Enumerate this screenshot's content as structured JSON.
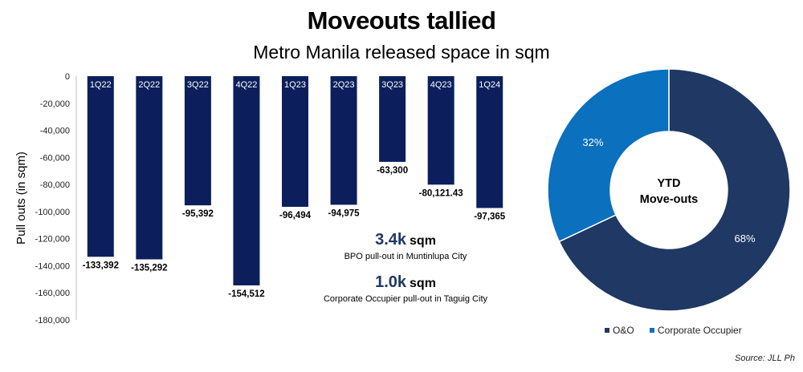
{
  "header": {
    "title": "Moveouts tallied",
    "subtitle": "Metro Manila released space in sqm"
  },
  "source": "Source: JLL Ph",
  "colors": {
    "bar": "#0c1f5c",
    "o_and_o": "#1f3864",
    "corporate_occupier": "#0b70bd"
  },
  "chart_data": [
    {
      "type": "bar",
      "ylabel": "Pull outs (in sqm)",
      "ylim": [
        -180000,
        0
      ],
      "yticks": [
        "0",
        "-20,000",
        "-40,000",
        "-60,000",
        "-80,000",
        "-100,000",
        "-120,000",
        "-140,000",
        "-160,000",
        "-180,000"
      ],
      "categories": [
        "1Q22",
        "2Q22",
        "3Q22",
        "4Q22",
        "1Q23",
        "2Q23",
        "3Q23",
        "4Q23",
        "1Q24"
      ],
      "values": [
        -133392,
        -135292,
        -95392,
        -154512,
        -96494,
        -94975,
        -63300,
        -80121.43,
        -97365
      ],
      "data_labels": [
        "-133,392",
        "-135,292",
        "-95,392",
        "-154,512",
        "-96,494",
        "-94,975",
        "-63,300",
        "-80,121.43",
        "-97,365"
      ],
      "annotations": [
        {
          "value": "3.4k",
          "unit": "sqm",
          "text": "BPO pull-out in Muntinlupa City"
        },
        {
          "value": "1.0k",
          "unit": "sqm",
          "text": "Corporate Occupier pull-out in Taguig City"
        }
      ]
    },
    {
      "type": "pie",
      "style": "donut",
      "center_label": [
        "YTD",
        "Move-outs"
      ],
      "legend_position": "bottom",
      "categories": [
        "O&O",
        "Corporate Occupier"
      ],
      "values": [
        68,
        32
      ],
      "data_labels": [
        "68%",
        "32%"
      ]
    }
  ]
}
